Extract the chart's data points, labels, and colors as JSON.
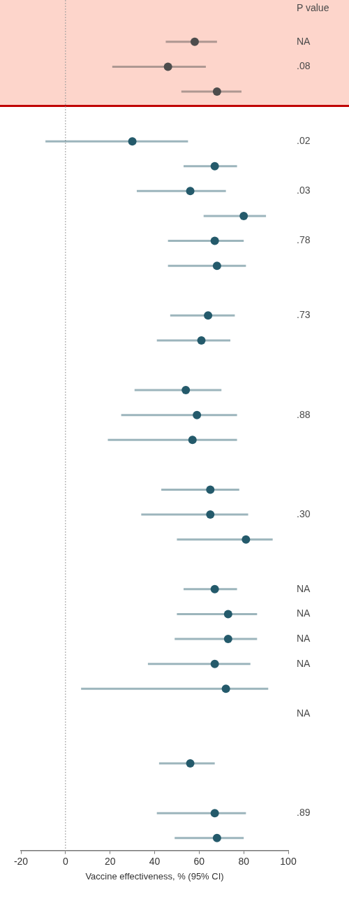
{
  "chart_data": {
    "type": "scatter",
    "orientation": "horizontal",
    "xlabel": "Vaccine effectiveness, % (95% CI)",
    "annotations": [
      "P value"
    ],
    "categories": [
      "NA",
      ".08",
      null,
      null,
      ".02",
      null,
      ".03",
      null,
      ".78",
      null,
      null,
      ".73",
      null,
      null,
      null,
      ".88",
      null,
      null,
      null,
      ".30",
      null,
      null,
      "NA",
      "NA",
      "NA",
      "NA",
      null,
      "NA",
      null,
      null,
      null,
      ".89",
      null
    ],
    "xlim": [
      -20,
      100
    ],
    "xticks": [
      -20,
      0,
      20,
      40,
      60,
      80,
      100
    ],
    "marker": "circle",
    "ref_lines": [
      {
        "axis": "x",
        "value": 0,
        "line_style": "dotted",
        "color": "#9a9a9a"
      }
    ],
    "series": [
      {
        "color": "#4d4d4d",
        "values": [
          58,
          46,
          68,
          null,
          null,
          null,
          null,
          null,
          null,
          null,
          null,
          null,
          null,
          null,
          null,
          null,
          null,
          null,
          null,
          null,
          null,
          null,
          null,
          null,
          null,
          null,
          null,
          null,
          null,
          null,
          null,
          null,
          null
        ],
        "errors": [
          [
            45,
            68
          ],
          [
            21,
            63
          ],
          [
            52,
            79
          ],
          null,
          null,
          null,
          null,
          null,
          null,
          null,
          null,
          null,
          null,
          null,
          null,
          null,
          null,
          null,
          null,
          null,
          null,
          null,
          null,
          null,
          null,
          null,
          null,
          null,
          null,
          null,
          null,
          null,
          null
        ]
      },
      {
        "color": "#245a6b",
        "values": [
          null,
          null,
          null,
          null,
          30,
          67,
          56,
          80,
          67,
          68,
          null,
          64,
          61,
          null,
          54,
          59,
          57,
          null,
          65,
          65,
          81,
          null,
          67,
          73,
          73,
          67,
          72,
          null,
          null,
          56,
          null,
          67,
          68
        ],
        "errors": [
          null,
          null,
          null,
          null,
          [
            -9,
            55
          ],
          [
            53,
            77
          ],
          [
            32,
            72
          ],
          [
            62,
            90
          ],
          [
            46,
            80
          ],
          [
            46,
            81
          ],
          null,
          [
            47,
            76
          ],
          [
            41,
            74
          ],
          null,
          [
            31,
            70
          ],
          [
            25,
            77
          ],
          [
            19,
            77
          ],
          null,
          [
            43,
            78
          ],
          [
            34,
            82
          ],
          [
            50,
            93
          ],
          null,
          [
            53,
            77
          ],
          [
            50,
            86
          ],
          [
            49,
            86
          ],
          [
            37,
            83
          ],
          [
            7,
            91
          ],
          null,
          null,
          [
            42,
            67
          ],
          null,
          [
            41,
            81
          ],
          [
            49,
            80
          ]
        ]
      }
    ]
  }
}
